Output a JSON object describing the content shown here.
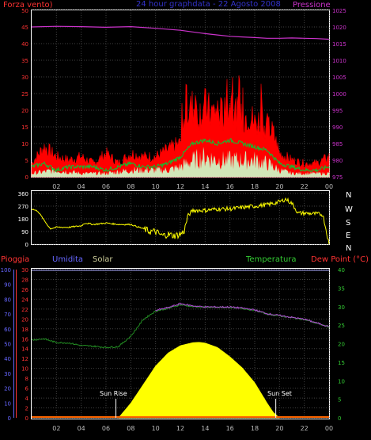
{
  "header": {
    "left_label": "Forza vento)",
    "center_label": "24 hour graphdata - 22 Agosto 2008",
    "right_label": "Pressione"
  },
  "wind_dir_labels": [
    "N",
    "W",
    "S",
    "E",
    "N"
  ],
  "bottom_header": {
    "pioggia": "Pioggia",
    "umidita": "Umidita",
    "solar": "Solar",
    "temperatura": "Temperatura",
    "dew_point": "Dew Point (°C)"
  },
  "annotations": {
    "sun_rise": "Sun Rise",
    "sun_set": "Sun Set"
  },
  "colors": {
    "wind_gust": "#ff0000",
    "wind_avg": "#00cc33",
    "wind_low": "#ccffcc",
    "pressure": "#cc33cc",
    "direction": "#ffff00",
    "temperature": "#228b22",
    "dew_point": "#b14bd6",
    "solar": "#ffff00",
    "rain_axis": "#ff3333",
    "humidity_axis": "#6666ff",
    "temp_axis": "#33cc33"
  },
  "chart_data": [
    {
      "type": "line",
      "name": "wind-pressure",
      "x_ticks": [
        "02",
        "04",
        "06",
        "08",
        "10",
        "12",
        "14",
        "16",
        "18",
        "20",
        "22",
        "00"
      ],
      "y_left_ticks": [
        0,
        5,
        10,
        15,
        20,
        25,
        30,
        35,
        40,
        45,
        50
      ],
      "y_left_lim": [
        0,
        50
      ],
      "y_right_ticks": [
        975,
        980,
        985,
        990,
        995,
        1000,
        1005,
        1010,
        1015,
        1020,
        1025
      ],
      "y_right_lim": [
        975,
        1025
      ],
      "series": [
        {
          "name": "Pressione",
          "axis": "right",
          "x": [
            0,
            2,
            4,
            6,
            8,
            10,
            12,
            13,
            14,
            15,
            16,
            17,
            18,
            19,
            20,
            21,
            22,
            23,
            24
          ],
          "values": [
            1020,
            1020.2,
            1020.1,
            1019.9,
            1020.1,
            1019.6,
            1019,
            1018.5,
            1018,
            1017.6,
            1017.2,
            1017,
            1016.8,
            1016.6,
            1016.6,
            1016.7,
            1016.6,
            1016.5,
            1016.3
          ]
        },
        {
          "name": "gust",
          "axis": "left",
          "x": [
            0,
            1,
            2,
            3,
            4,
            5,
            6,
            7,
            8,
            9,
            10,
            11,
            12,
            12.5,
            13,
            13.5,
            14,
            14.5,
            15,
            15.5,
            16,
            16.5,
            17,
            17.5,
            18,
            18.5,
            19,
            19.5,
            20,
            21,
            22,
            23,
            24
          ],
          "values": [
            4,
            9,
            6,
            5,
            6,
            4,
            7,
            4,
            7,
            6,
            6,
            8,
            10,
            19,
            21,
            19,
            21,
            19,
            20,
            18,
            22,
            19,
            17,
            19,
            16,
            17,
            15,
            13,
            7,
            5,
            4,
            4,
            6
          ]
        },
        {
          "name": "average",
          "axis": "left",
          "x": [
            0,
            1,
            2,
            3,
            4,
            5,
            6,
            7,
            8,
            9,
            10,
            11,
            12,
            13,
            14,
            15,
            16,
            17,
            18,
            19,
            20,
            21,
            22,
            23,
            24
          ],
          "values": [
            3,
            4,
            2,
            3,
            3,
            3,
            2,
            3,
            4,
            3,
            3,
            4,
            6,
            10,
            11,
            10,
            11,
            10,
            9,
            8,
            4,
            3,
            2,
            2,
            3
          ]
        },
        {
          "name": "low",
          "axis": "left",
          "x": [
            0,
            2,
            4,
            6,
            8,
            10,
            11,
            12,
            13,
            14,
            15,
            16,
            17,
            18,
            19,
            20,
            21,
            22,
            24
          ],
          "values": [
            1,
            2,
            1,
            1,
            2,
            2,
            2,
            3,
            5,
            6,
            5,
            5,
            5,
            5,
            4,
            2,
            1,
            1,
            1
          ]
        }
      ]
    },
    {
      "type": "scatter",
      "name": "wind-direction",
      "x_ticks": [
        "02",
        "04",
        "06",
        "08",
        "10",
        "12",
        "14",
        "16",
        "18",
        "20",
        "22",
        "00"
      ],
      "y_ticks": [
        0,
        90,
        180,
        270,
        360
      ],
      "y_lim": [
        0,
        360
      ],
      "series": [
        {
          "name": "direction",
          "x": [
            0,
            0.5,
            1,
            1.5,
            2,
            3,
            4,
            4.3,
            5,
            6,
            7,
            8,
            9,
            9.5,
            10,
            10.5,
            11,
            11.5,
            12,
            12.3,
            12.6,
            13,
            14,
            15,
            16,
            17,
            18,
            19,
            20,
            20.5,
            21,
            21.5,
            22,
            23,
            23.5,
            24
          ],
          "values": [
            250,
            235,
            170,
            110,
            120,
            120,
            130,
            150,
            140,
            150,
            140,
            140,
            110,
            90,
            90,
            60,
            70,
            60,
            70,
            90,
            200,
            240,
            240,
            250,
            250,
            260,
            270,
            280,
            300,
            320,
            290,
            220,
            220,
            215,
            210,
            0
          ]
        }
      ]
    },
    {
      "type": "area",
      "name": "temp-humidity-solar",
      "x_ticks": [
        "02",
        "04",
        "06",
        "08",
        "10",
        "12",
        "14",
        "16",
        "18",
        "20",
        "22",
        "00"
      ],
      "y_rain_ticks": [
        0,
        2,
        4,
        6,
        8,
        10,
        12,
        14,
        16,
        18,
        20,
        22,
        24,
        26,
        28,
        30
      ],
      "y_rain_lim": [
        0,
        30
      ],
      "y_humidity_ticks": [
        0,
        10,
        20,
        30,
        40,
        50,
        60,
        70,
        80,
        90,
        100
      ],
      "y_humidity_lim": [
        0,
        100
      ],
      "y_temp_ticks": [
        0,
        5,
        10,
        15,
        20,
        25,
        30,
        35,
        40
      ],
      "y_temp_lim": [
        0,
        40
      ],
      "sun_rise_x": 6.8,
      "sun_set_x": 19.7,
      "series": [
        {
          "name": "Temperatura",
          "x": [
            0,
            1,
            2,
            3,
            4,
            5,
            6,
            7,
            8,
            9,
            10,
            11,
            12,
            13,
            14,
            15,
            16,
            17,
            18,
            19,
            20,
            21,
            22,
            23,
            24
          ],
          "values": [
            21,
            21.3,
            20.3,
            20.2,
            19.5,
            19.3,
            19,
            19.2,
            22,
            26.5,
            28.8,
            29.5,
            30.5,
            30,
            29.8,
            29.8,
            29.8,
            29.5,
            29,
            28,
            27.5,
            27,
            26.5,
            25.5,
            24.5
          ]
        },
        {
          "name": "Dew Point",
          "x": [
            10,
            11,
            12,
            13,
            14,
            15,
            16,
            17,
            18,
            19,
            20,
            21,
            22,
            23,
            24
          ],
          "values": [
            29,
            29.7,
            30.8,
            30.2,
            29.9,
            29.9,
            29.9,
            29.6,
            29.1,
            28.1,
            27.6,
            27.1,
            26.6,
            25.6,
            24.6
          ]
        },
        {
          "name": "Solar",
          "x": [
            7,
            8,
            9,
            10,
            11,
            12,
            13,
            13.5,
            14,
            15,
            16,
            17,
            18,
            19,
            19.5,
            20
          ],
          "values": [
            0,
            4,
            9,
            14,
            17.5,
            19.5,
            20.3,
            20.4,
            20.2,
            19,
            16.5,
            13.5,
            9.5,
            4,
            1.5,
            0
          ]
        },
        {
          "name": "Pioggia",
          "x": [
            0,
            24
          ],
          "values": [
            0,
            0
          ]
        }
      ]
    }
  ]
}
